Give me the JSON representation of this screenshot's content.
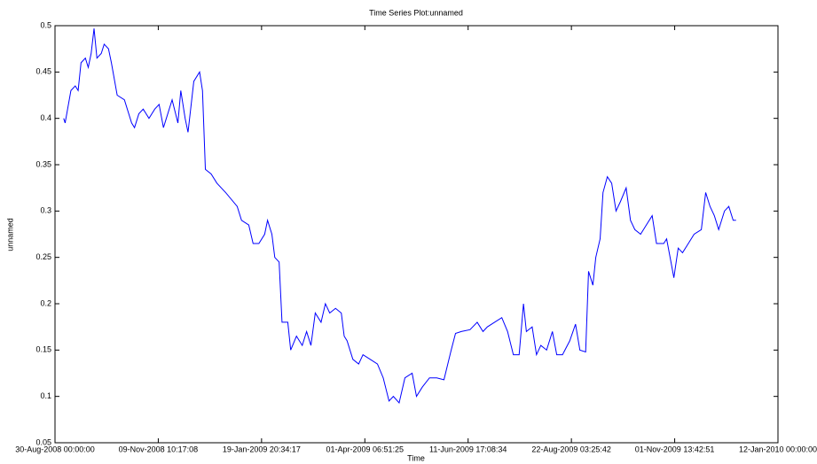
{
  "chart_data": {
    "type": "line",
    "title": "Time Series Plot:unnamed",
    "x_label": "Time",
    "y_label": "unnamed",
    "x": [
      "2008-09-05",
      "2008-09-06",
      "2008-09-10",
      "2008-09-13",
      "2008-09-15",
      "2008-09-17",
      "2008-09-20",
      "2008-09-22",
      "2008-09-24",
      "2008-09-26",
      "2008-09-28",
      "2008-10-01",
      "2008-10-03",
      "2008-10-06",
      "2008-10-08",
      "2008-10-12",
      "2008-10-17",
      "2008-10-22",
      "2008-10-24",
      "2008-10-27",
      "2008-10-30",
      "2008-11-03",
      "2008-11-07",
      "2008-11-10",
      "2008-11-13",
      "2008-11-15",
      "2008-11-19",
      "2008-11-23",
      "2008-11-25",
      "2008-11-28",
      "2008-11-30",
      "2008-12-04",
      "2008-12-08",
      "2008-12-10",
      "2008-12-12",
      "2008-12-16",
      "2008-12-20",
      "2008-12-26",
      "2009-01-03",
      "2009-01-06",
      "2009-01-11",
      "2009-01-14",
      "2009-01-18",
      "2009-01-22",
      "2009-01-24",
      "2009-01-27",
      "2009-01-29",
      "2009-02-01",
      "2009-02-03",
      "2009-02-07",
      "2009-02-09",
      "2009-02-13",
      "2009-02-17",
      "2009-02-20",
      "2009-02-23",
      "2009-02-26",
      "2009-03-02",
      "2009-03-05",
      "2009-03-08",
      "2009-03-12",
      "2009-03-16",
      "2009-03-18",
      "2009-03-20",
      "2009-03-24",
      "2009-03-28",
      "2009-03-31",
      "2009-04-05",
      "2009-04-10",
      "2009-04-14",
      "2009-04-18",
      "2009-04-21",
      "2009-04-25",
      "2009-04-29",
      "2009-05-04",
      "2009-05-07",
      "2009-05-11",
      "2009-05-16",
      "2009-05-21",
      "2009-05-26",
      "2009-05-31",
      "2009-06-03",
      "2009-06-07",
      "2009-06-13",
      "2009-06-18",
      "2009-06-22",
      "2009-06-25",
      "2009-06-30",
      "2009-07-05",
      "2009-07-09",
      "2009-07-13",
      "2009-07-17",
      "2009-07-20",
      "2009-07-22",
      "2009-07-26",
      "2009-07-29",
      "2009-08-01",
      "2009-08-05",
      "2009-08-09",
      "2009-08-12",
      "2009-08-16",
      "2009-08-21",
      "2009-08-25",
      "2009-08-28",
      "2009-09-01",
      "2009-09-03",
      "2009-09-06",
      "2009-09-08",
      "2009-09-11",
      "2009-09-13",
      "2009-09-16",
      "2009-09-19",
      "2009-09-22",
      "2009-09-25",
      "2009-09-29",
      "2009-10-02",
      "2009-10-05",
      "2009-10-09",
      "2009-10-13",
      "2009-10-17",
      "2009-10-20",
      "2009-10-25",
      "2009-10-27",
      "2009-10-30",
      "2009-11-01",
      "2009-11-04",
      "2009-11-07",
      "2009-11-11",
      "2009-11-15",
      "2009-11-20",
      "2009-11-23",
      "2009-11-26",
      "2009-11-29",
      "2009-12-02",
      "2009-12-06",
      "2009-12-09",
      "2009-12-12",
      "2009-12-14"
    ],
    "series": [
      {
        "name": "unnamed",
        "color": "#0000ff",
        "values": [
          0.4,
          0.395,
          0.43,
          0.435,
          0.43,
          0.46,
          0.465,
          0.455,
          0.47,
          0.497,
          0.465,
          0.47,
          0.48,
          0.475,
          0.46,
          0.425,
          0.42,
          0.395,
          0.39,
          0.405,
          0.41,
          0.4,
          0.41,
          0.415,
          0.39,
          0.4,
          0.42,
          0.395,
          0.43,
          0.4,
          0.385,
          0.44,
          0.45,
          0.43,
          0.345,
          0.34,
          0.33,
          0.32,
          0.305,
          0.29,
          0.285,
          0.265,
          0.265,
          0.275,
          0.29,
          0.275,
          0.25,
          0.245,
          0.18,
          0.18,
          0.15,
          0.165,
          0.155,
          0.17,
          0.155,
          0.19,
          0.18,
          0.2,
          0.19,
          0.195,
          0.19,
          0.165,
          0.16,
          0.14,
          0.135,
          0.145,
          0.14,
          0.135,
          0.12,
          0.095,
          0.1,
          0.093,
          0.12,
          0.125,
          0.1,
          0.11,
          0.12,
          0.12,
          0.118,
          0.15,
          0.168,
          0.17,
          0.172,
          0.18,
          0.17,
          0.175,
          0.18,
          0.185,
          0.17,
          0.145,
          0.145,
          0.2,
          0.17,
          0.175,
          0.145,
          0.155,
          0.15,
          0.17,
          0.145,
          0.145,
          0.16,
          0.178,
          0.15,
          0.148,
          0.235,
          0.22,
          0.25,
          0.27,
          0.32,
          0.337,
          0.33,
          0.3,
          0.31,
          0.325,
          0.29,
          0.28,
          0.275,
          0.285,
          0.295,
          0.265,
          0.265,
          0.27,
          0.245,
          0.228,
          0.26,
          0.255,
          0.265,
          0.275,
          0.28,
          0.32,
          0.305,
          0.295,
          0.28,
          0.3,
          0.305,
          0.29,
          0.29
        ]
      }
    ],
    "xlim": [
      "2008-08-30T00:00:00",
      "2010-01-12T00:00:00"
    ],
    "xticks": [
      {
        "value": "2008-08-30T00:00:00",
        "label": "30-Aug-2008 00:00:00"
      },
      {
        "value": "2008-11-09T10:17:08",
        "label": "09-Nov-2008 10:17:08"
      },
      {
        "value": "2009-01-19T20:34:17",
        "label": "19-Jan-2009 20:34:17"
      },
      {
        "value": "2009-04-01T06:51:25",
        "label": "01-Apr-2009 06:51:25"
      },
      {
        "value": "2009-06-11T17:08:34",
        "label": "11-Jun-2009 17:08:34"
      },
      {
        "value": "2009-08-22T03:25:42",
        "label": "22-Aug-2009 03:25:42"
      },
      {
        "value": "2009-11-01T13:42:51",
        "label": "01-Nov-2009 13:42:51"
      },
      {
        "value": "2010-01-12T00:00:00",
        "label": "12-Jan-2010 00:00:00"
      }
    ],
    "ylim": [
      0.05,
      0.5
    ],
    "yticks": [
      0.05,
      0.1,
      0.15,
      0.2,
      0.25,
      0.3,
      0.35,
      0.4,
      0.45,
      0.5
    ],
    "grid": false
  }
}
